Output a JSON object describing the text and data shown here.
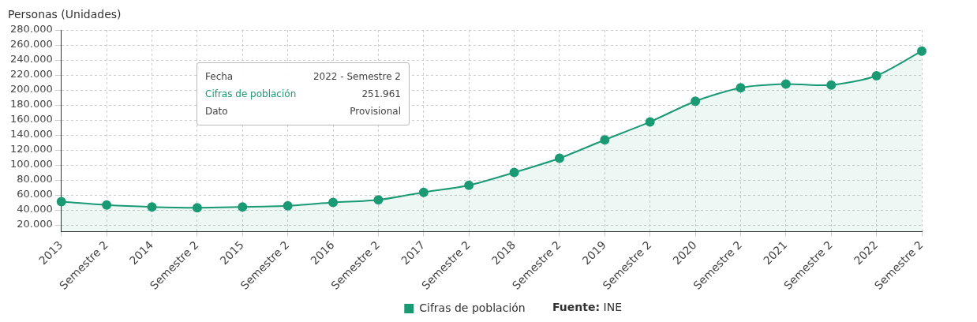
{
  "chart_data": {
    "type": "area",
    "ylabel": "Personas (Unidades)",
    "categories": [
      "2013",
      "Semestre 2",
      "2014",
      "Semestre 2",
      "2015",
      "Semestre 2",
      "2016",
      "Semestre 2",
      "2017",
      "Semestre 2",
      "2018",
      "Semestre 2",
      "2019",
      "Semestre 2",
      "2020",
      "Semestre 2",
      "2021",
      "Semestre 2",
      "2022",
      "Semestre 2"
    ],
    "series": [
      {
        "name": "Cifras de población",
        "color": "#1a9a74",
        "values": [
          51000,
          46500,
          44000,
          43000,
          44000,
          45500,
          50000,
          53500,
          63500,
          73000,
          90000,
          109000,
          133500,
          157500,
          185000,
          203000,
          208000,
          206500,
          219000,
          251961
        ]
      }
    ],
    "ylim": [
      11000,
      280000
    ],
    "yticks": [
      {
        "value": 20000,
        "label": "20.000"
      },
      {
        "value": 40000,
        "label": "40.000"
      },
      {
        "value": 60000,
        "label": "60.000"
      },
      {
        "value": 80000,
        "label": "80.000"
      },
      {
        "value": 100000,
        "label": "100.000"
      },
      {
        "value": 120000,
        "label": "120.000"
      },
      {
        "value": 140000,
        "label": "140.000"
      },
      {
        "value": 160000,
        "label": "160.000"
      },
      {
        "value": 180000,
        "label": "180.000"
      },
      {
        "value": 200000,
        "label": "200.000"
      },
      {
        "value": 220000,
        "label": "220.000"
      },
      {
        "value": 240000,
        "label": "240.000"
      },
      {
        "value": 260000,
        "label": "260.000"
      },
      {
        "value": 280000,
        "label": "280.000"
      }
    ],
    "grid": true,
    "legend": "bottom",
    "marker": "circle",
    "line_style": "solid",
    "annotations": [
      "Fecha",
      "2022 - Semestre 2",
      "Cifras de población",
      "251.961",
      "Dato",
      "Provisional",
      "Fuente: INE"
    ]
  }
}
